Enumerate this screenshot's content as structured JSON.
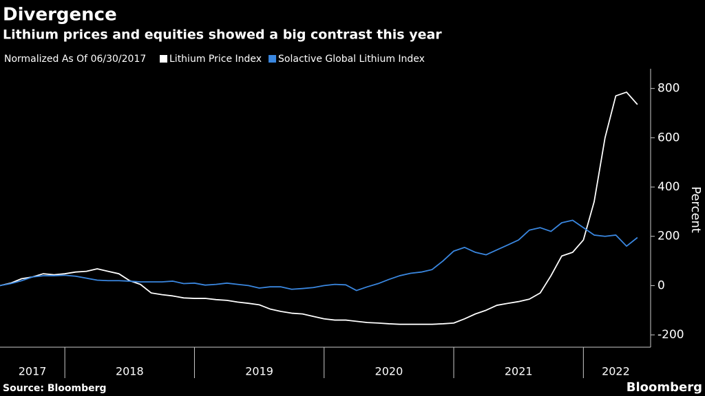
{
  "chart_data": {
    "type": "line",
    "title": "Divergence",
    "subtitle": "Lithium prices and equities showed a big contrast this year",
    "note": "Normalized As Of 06/30/2017",
    "y_label": "Percent",
    "source": "Source: Bloomberg",
    "logo": "Bloomberg",
    "x": [
      2017.5,
      2017.583,
      2017.667,
      2017.75,
      2017.833,
      2017.917,
      2018,
      2018.083,
      2018.167,
      2018.25,
      2018.333,
      2018.417,
      2018.5,
      2018.583,
      2018.667,
      2018.75,
      2018.833,
      2018.917,
      2019,
      2019.083,
      2019.167,
      2019.25,
      2019.333,
      2019.417,
      2019.5,
      2019.583,
      2019.667,
      2019.75,
      2019.833,
      2019.917,
      2020,
      2020.083,
      2020.167,
      2020.25,
      2020.333,
      2020.417,
      2020.5,
      2020.583,
      2020.667,
      2020.75,
      2020.833,
      2020.917,
      2021,
      2021.083,
      2021.167,
      2021.25,
      2021.333,
      2021.417,
      2021.5,
      2021.583,
      2021.667,
      2021.75,
      2021.833,
      2021.917,
      2022,
      2022.083,
      2022.167,
      2022.25,
      2022.333,
      2022.417
    ],
    "series": [
      {
        "name": "Lithium Price Index",
        "color": "#ffffff",
        "values": [
          0,
          10,
          28,
          35,
          48,
          44,
          48,
          55,
          58,
          68,
          58,
          48,
          20,
          5,
          -30,
          -37,
          -42,
          -50,
          -52,
          -52,
          -57,
          -60,
          -67,
          -72,
          -78,
          -95,
          -105,
          -112,
          -115,
          -125,
          -135,
          -140,
          -140,
          -145,
          -150,
          -152,
          -155,
          -157,
          -157,
          -157,
          -157,
          -155,
          -152,
          -135,
          -115,
          -100,
          -80,
          -72,
          -65,
          -55,
          -30,
          40,
          120,
          135,
          185,
          340,
          600,
          770,
          785,
          735
        ]
      },
      {
        "name": "Solactive Global Lithium Index",
        "color": "#3a87e0",
        "values": [
          0,
          8,
          20,
          35,
          40,
          40,
          42,
          38,
          30,
          22,
          20,
          20,
          18,
          15,
          15,
          15,
          18,
          8,
          10,
          2,
          5,
          10,
          5,
          0,
          -10,
          -5,
          -5,
          -15,
          -12,
          -8,
          0,
          5,
          3,
          -20,
          -5,
          8,
          25,
          40,
          50,
          55,
          65,
          100,
          140,
          155,
          135,
          125,
          145,
          165,
          185,
          225,
          235,
          220,
          255,
          265,
          235,
          205,
          200,
          205,
          160,
          195
        ]
      }
    ],
    "xlim": [
      2017.5,
      2022.5
    ],
    "xticks": [
      {
        "value": 2017,
        "label": "2017"
      },
      {
        "value": 2018,
        "label": "2018"
      },
      {
        "value": 2019,
        "label": "2019"
      },
      {
        "value": 2020,
        "label": "2020"
      },
      {
        "value": 2021,
        "label": "2021"
      },
      {
        "value": 2022,
        "label": "2022"
      }
    ],
    "ylim": [
      -250,
      880
    ],
    "yticks": [
      -200,
      0,
      200,
      400,
      600,
      800
    ],
    "grid": false
  }
}
